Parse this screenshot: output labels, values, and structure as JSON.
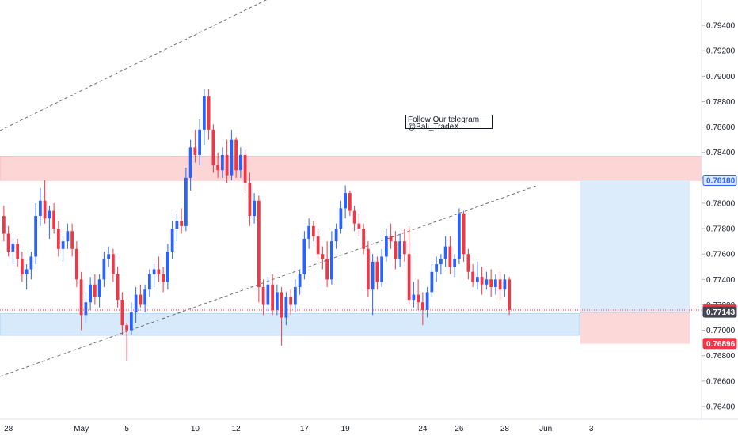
{
  "chart_data": {
    "type": "candlestick",
    "price_axis": {
      "min": 0.763,
      "max": 0.796,
      "tick_labels": [
        "0.79400",
        "0.79200",
        "0.79000",
        "0.78800",
        "0.78600",
        "0.78400",
        "0.78200",
        "0.78000",
        "0.77800",
        "0.77600",
        "0.77400",
        "0.77200",
        "0.77000",
        "0.76800",
        "0.76600",
        "0.76400"
      ]
    },
    "time_axis": {
      "tick_labels": [
        {
          "label": "28",
          "bar": 1
        },
        {
          "label": "May",
          "bar": 17
        },
        {
          "label": "5",
          "bar": 27
        },
        {
          "label": "10",
          "bar": 42
        },
        {
          "label": "12",
          "bar": 51
        },
        {
          "label": "17",
          "bar": 66
        },
        {
          "label": "19",
          "bar": 75
        },
        {
          "label": "24",
          "bar": 92
        },
        {
          "label": "26",
          "bar": 100
        },
        {
          "label": "28",
          "bar": 110
        },
        {
          "label": "Jun",
          "bar": 119
        },
        {
          "label": "3",
          "bar": 129
        }
      ]
    },
    "colors": {
      "up": "#2962ff",
      "down": "#f23645",
      "resistance_zone": "#fcd5d5",
      "support_zone": "#d7eafb",
      "target_zone": "#dcecfa",
      "stop_zone": "#fcd8d8",
      "trendline": "#6d6d6d"
    },
    "candles": [
      [
        0.779,
        0.7798,
        0.777,
        0.7776
      ],
      [
        0.7776,
        0.7782,
        0.7758,
        0.7762
      ],
      [
        0.7762,
        0.7772,
        0.7752,
        0.7768
      ],
      [
        0.7768,
        0.7772,
        0.775,
        0.7756
      ],
      [
        0.7756,
        0.7762,
        0.7738,
        0.7744
      ],
      [
        0.7744,
        0.7752,
        0.7732,
        0.7748
      ],
      [
        0.7748,
        0.7762,
        0.774,
        0.7758
      ],
      [
        0.7758,
        0.78,
        0.7752,
        0.779
      ],
      [
        0.779,
        0.7812,
        0.7782,
        0.7802
      ],
      [
        0.7802,
        0.7818,
        0.7784,
        0.7788
      ],
      [
        0.7788,
        0.7798,
        0.7772,
        0.7794
      ],
      [
        0.7794,
        0.78,
        0.7776,
        0.778
      ],
      [
        0.778,
        0.7786,
        0.7758,
        0.7764
      ],
      [
        0.7764,
        0.7774,
        0.7754,
        0.777
      ],
      [
        0.777,
        0.7784,
        0.7764,
        0.7778
      ],
      [
        0.7778,
        0.7784,
        0.7758,
        0.7764
      ],
      [
        0.7764,
        0.777,
        0.7734,
        0.774
      ],
      [
        0.774,
        0.7746,
        0.77,
        0.7712
      ],
      [
        0.7712,
        0.773,
        0.7706,
        0.7722
      ],
      [
        0.7722,
        0.7742,
        0.7716,
        0.7736
      ],
      [
        0.7736,
        0.7744,
        0.772,
        0.7726
      ],
      [
        0.7726,
        0.7744,
        0.7718,
        0.774
      ],
      [
        0.774,
        0.7762,
        0.7734,
        0.7756
      ],
      [
        0.7756,
        0.7766,
        0.775,
        0.776
      ],
      [
        0.776,
        0.7764,
        0.7738,
        0.7744
      ],
      [
        0.7744,
        0.775,
        0.7718,
        0.7724
      ],
      [
        0.7724,
        0.773,
        0.7696,
        0.7704
      ],
      [
        0.7704,
        0.7706,
        0.7676,
        0.77
      ],
      [
        0.77,
        0.7722,
        0.7696,
        0.7714
      ],
      [
        0.7714,
        0.7734,
        0.7706,
        0.7728
      ],
      [
        0.7728,
        0.7736,
        0.7718,
        0.772
      ],
      [
        0.772,
        0.7736,
        0.7714,
        0.7732
      ],
      [
        0.7732,
        0.7748,
        0.7726,
        0.7744
      ],
      [
        0.7744,
        0.7752,
        0.7734,
        0.7748
      ],
      [
        0.7748,
        0.7758,
        0.7738,
        0.7744
      ],
      [
        0.7744,
        0.775,
        0.773,
        0.7738
      ],
      [
        0.7738,
        0.7768,
        0.7732,
        0.7762
      ],
      [
        0.7762,
        0.7786,
        0.7756,
        0.778
      ],
      [
        0.778,
        0.7792,
        0.777,
        0.7786
      ],
      [
        0.7786,
        0.7796,
        0.7776,
        0.7782
      ],
      [
        0.7782,
        0.7828,
        0.7778,
        0.782
      ],
      [
        0.782,
        0.785,
        0.781,
        0.7844
      ],
      [
        0.7844,
        0.7858,
        0.7832,
        0.7838
      ],
      [
        0.7838,
        0.7866,
        0.783,
        0.7858
      ],
      [
        0.7858,
        0.789,
        0.7846,
        0.7884
      ],
      [
        0.7884,
        0.789,
        0.785,
        0.7858
      ],
      [
        0.7858,
        0.7862,
        0.7824,
        0.783
      ],
      [
        0.783,
        0.784,
        0.782,
        0.7826
      ],
      [
        0.7826,
        0.7844,
        0.782,
        0.7838
      ],
      [
        0.7838,
        0.785,
        0.7816,
        0.7822
      ],
      [
        0.7822,
        0.7858,
        0.7818,
        0.785
      ],
      [
        0.785,
        0.7852,
        0.782,
        0.7826
      ],
      [
        0.7826,
        0.7844,
        0.782,
        0.7838
      ],
      [
        0.7838,
        0.7842,
        0.781,
        0.7816
      ],
      [
        0.7816,
        0.7824,
        0.7782,
        0.779
      ],
      [
        0.779,
        0.7808,
        0.7784,
        0.7802
      ],
      [
        0.7802,
        0.7806,
        0.7722,
        0.7734
      ],
      [
        0.7734,
        0.774,
        0.7712,
        0.772
      ],
      [
        0.772,
        0.7742,
        0.7714,
        0.7736
      ],
      [
        0.7736,
        0.7744,
        0.7712,
        0.7716
      ],
      [
        0.7716,
        0.7736,
        0.7712,
        0.773
      ],
      [
        0.773,
        0.7734,
        0.7688,
        0.771
      ],
      [
        0.771,
        0.773,
        0.7704,
        0.7726
      ],
      [
        0.7726,
        0.7732,
        0.7712,
        0.772
      ],
      [
        0.772,
        0.774,
        0.7714,
        0.7734
      ],
      [
        0.7734,
        0.7748,
        0.7728,
        0.7744
      ],
      [
        0.7744,
        0.7778,
        0.774,
        0.7772
      ],
      [
        0.7772,
        0.7788,
        0.7764,
        0.7782
      ],
      [
        0.7782,
        0.7786,
        0.777,
        0.7774
      ],
      [
        0.7774,
        0.778,
        0.7756,
        0.776
      ],
      [
        0.776,
        0.7766,
        0.7748,
        0.7756
      ],
      [
        0.7756,
        0.777,
        0.7734,
        0.774
      ],
      [
        0.774,
        0.7778,
        0.7736,
        0.777
      ],
      [
        0.777,
        0.7784,
        0.7764,
        0.778
      ],
      [
        0.778,
        0.7802,
        0.7776,
        0.7796
      ],
      [
        0.7796,
        0.7814,
        0.7788,
        0.7808
      ],
      [
        0.7808,
        0.781,
        0.779,
        0.7794
      ],
      [
        0.7794,
        0.7798,
        0.7778,
        0.7784
      ],
      [
        0.7784,
        0.7792,
        0.7774,
        0.778
      ],
      [
        0.778,
        0.7784,
        0.776,
        0.7764
      ],
      [
        0.7764,
        0.777,
        0.7726,
        0.7732
      ],
      [
        0.7732,
        0.776,
        0.7712,
        0.7754
      ],
      [
        0.7754,
        0.7758,
        0.7732,
        0.7738
      ],
      [
        0.7738,
        0.7764,
        0.7734,
        0.7758
      ],
      [
        0.7758,
        0.778,
        0.7754,
        0.7774
      ],
      [
        0.7774,
        0.7784,
        0.7764,
        0.777
      ],
      [
        0.777,
        0.7778,
        0.7748,
        0.7756
      ],
      [
        0.7756,
        0.7776,
        0.775,
        0.777
      ],
      [
        0.777,
        0.778,
        0.7754,
        0.776
      ],
      [
        0.776,
        0.7782,
        0.772,
        0.7724
      ],
      [
        0.7724,
        0.7738,
        0.7718,
        0.7728
      ],
      [
        0.7728,
        0.774,
        0.7716,
        0.7722
      ],
      [
        0.7722,
        0.773,
        0.7704,
        0.7716
      ],
      [
        0.7716,
        0.7734,
        0.771,
        0.773
      ],
      [
        0.773,
        0.7752,
        0.7726,
        0.7746
      ],
      [
        0.7746,
        0.7758,
        0.7738,
        0.7752
      ],
      [
        0.7752,
        0.776,
        0.7744,
        0.7756
      ],
      [
        0.7756,
        0.7774,
        0.775,
        0.7766
      ],
      [
        0.7766,
        0.7774,
        0.7744,
        0.775
      ],
      [
        0.775,
        0.776,
        0.7742,
        0.7756
      ],
      [
        0.7756,
        0.7796,
        0.7752,
        0.7792
      ],
      [
        0.7792,
        0.7794,
        0.7754,
        0.776
      ],
      [
        0.776,
        0.7764,
        0.774,
        0.7746
      ],
      [
        0.7746,
        0.7752,
        0.7734,
        0.7738
      ],
      [
        0.7738,
        0.7754,
        0.7732,
        0.7742
      ],
      [
        0.7742,
        0.775,
        0.7728,
        0.7736
      ],
      [
        0.7736,
        0.7746,
        0.7732,
        0.774
      ],
      [
        0.774,
        0.7748,
        0.7726,
        0.7734
      ],
      [
        0.7734,
        0.7744,
        0.7728,
        0.774
      ],
      [
        0.774,
        0.7746,
        0.7724,
        0.7732
      ],
      [
        0.7732,
        0.7744,
        0.7726,
        0.774
      ],
      [
        0.774,
        0.7742,
        0.7712,
        0.7716
      ]
    ],
    "zones": {
      "resistance": [
        0.7818,
        0.7837
      ],
      "support": [
        0.7696,
        0.7713
      ],
      "target_box": [
        0.77143,
        0.7818
      ],
      "stop_box": [
        0.76896,
        0.77143
      ]
    },
    "price_labels": {
      "resistance": {
        "text": "0.78180",
        "value": 0.7818
      },
      "current": {
        "text": "0.77159",
        "value": 0.77159
      },
      "entry": {
        "text": "0.77143",
        "value": 0.77143
      },
      "stop": {
        "text": "0.76896",
        "value": 0.76896
      }
    }
  },
  "annotation": {
    "line1": "Follow Our telegram",
    "line2": "@Bali_TradeX"
  }
}
